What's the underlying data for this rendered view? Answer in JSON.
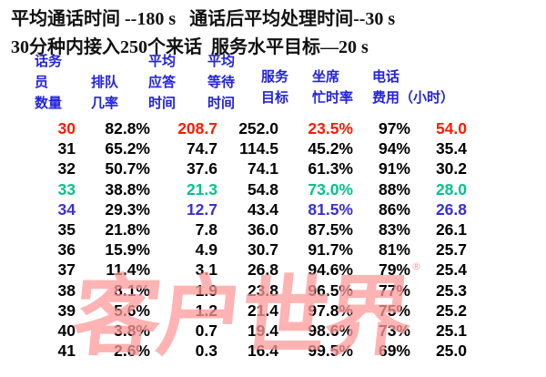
{
  "header": {
    "line1": "平均通话时间 --180 s   通话后平均处理时间--30 s",
    "line2": "30分种内接入250个来话  服务水平目标—20 s"
  },
  "columns": [
    {
      "lines": [
        "话务",
        "员",
        "数量"
      ]
    },
    {
      "lines": [
        "排队",
        "几率"
      ]
    },
    {
      "lines": [
        "平均",
        "应答",
        "时间"
      ]
    },
    {
      "lines": [
        "平均",
        "等待",
        "时间"
      ]
    },
    {
      "lines": [
        "服务",
        "目标"
      ]
    },
    {
      "lines": [
        "坐席",
        "忙时率"
      ]
    },
    {
      "lines": [
        "电话",
        "费用（小时）"
      ]
    }
  ],
  "colors": {
    "red": "#ff1a00",
    "green": "#00c48c",
    "blue": "#3a2fd0",
    "header_blue": "#2222dd"
  },
  "rows": [
    {
      "cells": [
        "30",
        "82.8%",
        "208.7",
        "252.0",
        "23.5%",
        "97%",
        "54.0"
      ],
      "highlight": "red"
    },
    {
      "cells": [
        "31",
        "65.2%",
        "74.7",
        "114.5",
        "45.2%",
        "94%",
        "35.4"
      ]
    },
    {
      "cells": [
        "32",
        "50.7%",
        "37.6",
        "74.1",
        "61.3%",
        "91%",
        "30.2"
      ]
    },
    {
      "cells": [
        "33",
        "38.8%",
        "21.3",
        "54.8",
        "73.0%",
        "88%",
        "28.0"
      ],
      "highlight": "green"
    },
    {
      "cells": [
        "34",
        "29.3%",
        "12.7",
        "43.4",
        "81.5%",
        "86%",
        "26.8"
      ],
      "highlight": "blue"
    },
    {
      "cells": [
        "35",
        "21.8%",
        "7.8",
        "36.0",
        "87.5%",
        "83%",
        "26.1"
      ]
    },
    {
      "cells": [
        "36",
        "15.9%",
        "4.9",
        "30.7",
        "91.7%",
        "81%",
        "25.7"
      ]
    },
    {
      "cells": [
        "37",
        "11.4%",
        "3.1",
        "26.8",
        "94.6%",
        "79%",
        "25.4"
      ]
    },
    {
      "cells": [
        "38",
        "8.1%",
        "1.9",
        "23.8",
        "96.5%",
        "77%",
        "25.3"
      ]
    },
    {
      "cells": [
        "39",
        "5.6%",
        "1.2",
        "21.4",
        "97.8%",
        "75%",
        "25.2"
      ]
    },
    {
      "cells": [
        "40",
        "3.8%",
        "0.7",
        "19.4",
        "98.6%",
        "73%",
        "25.1"
      ]
    },
    {
      "cells": [
        "41",
        "2.6%",
        "0.3",
        "16.4",
        "99.5%",
        "69%",
        "25.0"
      ]
    }
  ],
  "watermark": {
    "text": "客户世界",
    "mark": "®"
  }
}
